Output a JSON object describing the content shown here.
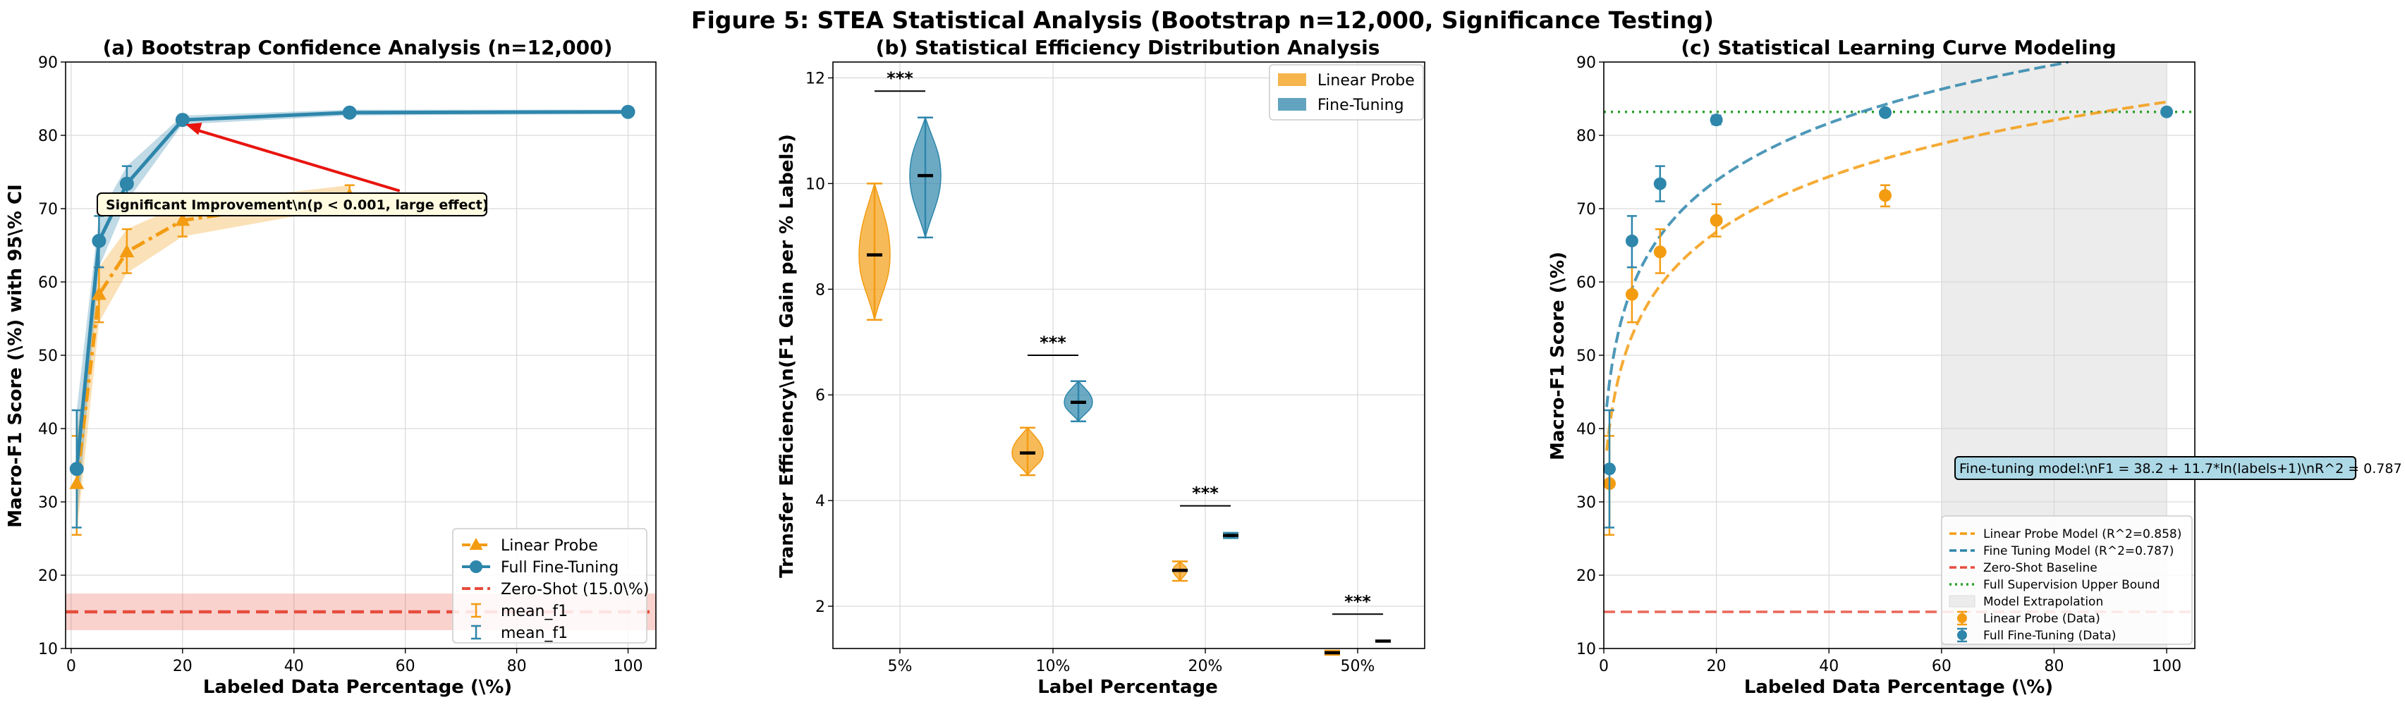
{
  "figure": {
    "title": "Figure 5: STEA Statistical Analysis (Bootstrap n=12,000, Significance Testing)"
  },
  "colors": {
    "linear": "#F39C12",
    "full": "#2E86AB",
    "zero": "#E74C3C",
    "upper": "#2CA02C",
    "extrap": "#ececec",
    "arrow": "#E8150F"
  },
  "chart_data": [
    {
      "type": "line",
      "title": "(a) Bootstrap Confidence Analysis (n=12,000)",
      "xlabel": "Labeled Data Percentage (\\%)",
      "ylabel": "Macro-F1 Score (\\%) with 95\\% CI",
      "xlim": [
        -1,
        105
      ],
      "ylim": [
        10,
        90
      ],
      "xticks": [
        0,
        20,
        40,
        60,
        80,
        100
      ],
      "yticks": [
        10,
        20,
        30,
        40,
        50,
        60,
        70,
        80,
        90
      ],
      "grid": true,
      "legend_position": "lower-right",
      "series": [
        {
          "name": "Linear Probe",
          "marker": "triangle",
          "x": [
            1,
            5,
            10,
            20,
            50
          ],
          "y": [
            32.5,
            58.3,
            64.1,
            68.4,
            71.8
          ],
          "err_low": [
            25.5,
            54.5,
            61.2,
            66.2,
            70.3
          ],
          "err_high": [
            39.0,
            62.0,
            67.2,
            70.6,
            73.2
          ]
        },
        {
          "name": "Full Fine-Tuning",
          "marker": "circle",
          "x": [
            1,
            5,
            10,
            20,
            50,
            100
          ],
          "y": [
            34.5,
            65.6,
            73.4,
            82.1,
            83.1,
            83.2
          ],
          "err_low": [
            26.5,
            62.0,
            71.0,
            81.5,
            82.7,
            82.9
          ],
          "err_high": [
            42.5,
            69.0,
            75.8,
            82.7,
            83.5,
            83.5
          ]
        },
        {
          "name": "Zero-Shot (15.0\\%)",
          "y": 15.0,
          "band": [
            12.5,
            17.5
          ]
        }
      ],
      "legend": [
        "Linear Probe",
        "Full Fine-Tuning",
        "Zero-Shot (15.0\\%)",
        "mean_f1",
        "mean_f1"
      ],
      "annotation": {
        "text": "Significant Improvement\\n(p < 0.001, large effect)",
        "xy": [
          20,
          82
        ],
        "xytext": [
          21,
          70.5
        ]
      }
    },
    {
      "type": "violin",
      "title": "(b) Statistical Efficiency Distribution Analysis",
      "xlabel": "Label Percentage",
      "ylabel": "Transfer Efficiency\\n(F1 Gain per % Labels)",
      "categories": [
        "5%",
        "10%",
        "20%",
        "50%"
      ],
      "ylim": [
        1.2,
        12.3
      ],
      "yticks": [
        2,
        4,
        6,
        8,
        10,
        12
      ],
      "grid": true,
      "legend_position": "top-right",
      "series": [
        {
          "name": "Linear Probe",
          "median": [
            8.65,
            4.9,
            2.68,
            1.12
          ],
          "min": [
            7.42,
            4.48,
            2.48,
            1.08
          ],
          "max": [
            10.0,
            5.38,
            2.85,
            1.16
          ]
        },
        {
          "name": "Fine-Tuning",
          "median": [
            10.15,
            5.86,
            3.34,
            1.34
          ],
          "min": [
            8.98,
            5.5,
            3.29,
            1.33
          ],
          "max": [
            11.25,
            6.26,
            3.39,
            1.35
          ]
        }
      ],
      "significance": [
        "***",
        "***",
        "***",
        "***"
      ],
      "significance_y": [
        11.75,
        6.75,
        3.9,
        1.85
      ]
    },
    {
      "type": "scatter",
      "title": "(c) Statistical Learning Curve Modeling",
      "xlabel": "Labeled Data Percentage (\\%)",
      "ylabel": "Macro-F1 Score (\\%)",
      "xlim": [
        0,
        105
      ],
      "ylim": [
        10,
        90
      ],
      "xticks": [
        0,
        20,
        40,
        60,
        80,
        100
      ],
      "yticks": [
        10,
        20,
        30,
        40,
        50,
        60,
        70,
        80,
        90
      ],
      "grid": true,
      "legend_position": "lower-right",
      "extrapolation_x": [
        60,
        100
      ],
      "zero_shot": 15.0,
      "upper_bound": 83.2,
      "linear_model": {
        "a": 32.4,
        "b": 11.3
      },
      "fine_model": {
        "a": 38.2,
        "b": 11.7
      },
      "series": [
        {
          "name": "Linear Probe (Data)",
          "x": [
            1,
            5,
            10,
            20,
            50
          ],
          "y": [
            32.5,
            58.3,
            64.1,
            68.4,
            71.8
          ],
          "err_low": [
            25.5,
            54.5,
            61.2,
            66.2,
            70.3
          ],
          "err_high": [
            39.0,
            62.0,
            67.2,
            70.6,
            73.2
          ]
        },
        {
          "name": "Full Fine-Tuning (Data)",
          "x": [
            1,
            5,
            10,
            20,
            50,
            100
          ],
          "y": [
            34.5,
            65.6,
            73.4,
            82.1,
            83.1,
            83.2
          ],
          "err_low": [
            26.5,
            62.0,
            71.0,
            81.5,
            82.7,
            82.9
          ],
          "err_high": [
            42.5,
            69.0,
            75.8,
            82.7,
            83.5,
            83.5
          ]
        }
      ],
      "legend": [
        "Linear Probe Model (R^2=0.858)",
        "Fine Tuning Model (R^2=0.787)",
        "Zero-Shot Baseline",
        "Full Supervision Upper Bound",
        "Model Extrapolation",
        "Linear Probe (Data)",
        "Full Fine-Tuning (Data)"
      ],
      "annotation": {
        "text": "Fine-tuning model:\\nF1 = 38.2 + 11.7*ln(labels+1)\\nR^2 = 0.787",
        "xy": [
          63,
          34.5
        ]
      }
    }
  ]
}
